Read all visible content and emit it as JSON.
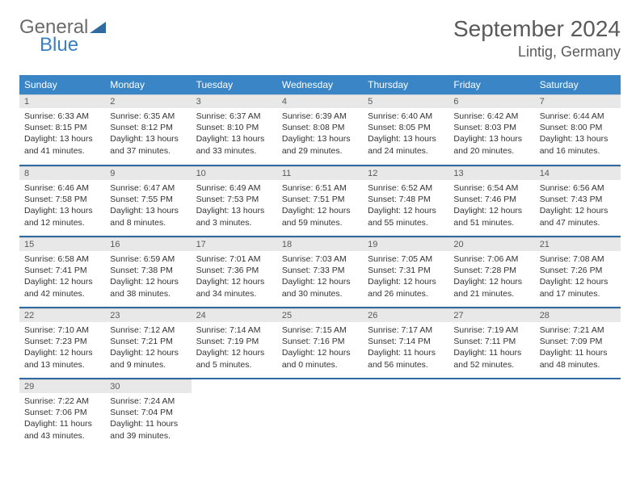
{
  "brand": {
    "part1": "General",
    "part2": "Blue"
  },
  "header": {
    "month": "September 2024",
    "location": "Lintig, Germany"
  },
  "colors": {
    "header_bg": "#3a85c6",
    "header_text": "#ffffff",
    "daynum_bg": "#e8e8e8",
    "text": "#333333",
    "row_sep": "#2f6aa0",
    "brand_gray": "#6b6b6b",
    "brand_blue": "#3a7fbf"
  },
  "weekdays": [
    "Sunday",
    "Monday",
    "Tuesday",
    "Wednesday",
    "Thursday",
    "Friday",
    "Saturday"
  ],
  "weeks": [
    [
      {
        "n": "1",
        "sr": "Sunrise: 6:33 AM",
        "ss": "Sunset: 8:15 PM",
        "dl": "Daylight: 13 hours and 41 minutes."
      },
      {
        "n": "2",
        "sr": "Sunrise: 6:35 AM",
        "ss": "Sunset: 8:12 PM",
        "dl": "Daylight: 13 hours and 37 minutes."
      },
      {
        "n": "3",
        "sr": "Sunrise: 6:37 AM",
        "ss": "Sunset: 8:10 PM",
        "dl": "Daylight: 13 hours and 33 minutes."
      },
      {
        "n": "4",
        "sr": "Sunrise: 6:39 AM",
        "ss": "Sunset: 8:08 PM",
        "dl": "Daylight: 13 hours and 29 minutes."
      },
      {
        "n": "5",
        "sr": "Sunrise: 6:40 AM",
        "ss": "Sunset: 8:05 PM",
        "dl": "Daylight: 13 hours and 24 minutes."
      },
      {
        "n": "6",
        "sr": "Sunrise: 6:42 AM",
        "ss": "Sunset: 8:03 PM",
        "dl": "Daylight: 13 hours and 20 minutes."
      },
      {
        "n": "7",
        "sr": "Sunrise: 6:44 AM",
        "ss": "Sunset: 8:00 PM",
        "dl": "Daylight: 13 hours and 16 minutes."
      }
    ],
    [
      {
        "n": "8",
        "sr": "Sunrise: 6:46 AM",
        "ss": "Sunset: 7:58 PM",
        "dl": "Daylight: 13 hours and 12 minutes."
      },
      {
        "n": "9",
        "sr": "Sunrise: 6:47 AM",
        "ss": "Sunset: 7:55 PM",
        "dl": "Daylight: 13 hours and 8 minutes."
      },
      {
        "n": "10",
        "sr": "Sunrise: 6:49 AM",
        "ss": "Sunset: 7:53 PM",
        "dl": "Daylight: 13 hours and 3 minutes."
      },
      {
        "n": "11",
        "sr": "Sunrise: 6:51 AM",
        "ss": "Sunset: 7:51 PM",
        "dl": "Daylight: 12 hours and 59 minutes."
      },
      {
        "n": "12",
        "sr": "Sunrise: 6:52 AM",
        "ss": "Sunset: 7:48 PM",
        "dl": "Daylight: 12 hours and 55 minutes."
      },
      {
        "n": "13",
        "sr": "Sunrise: 6:54 AM",
        "ss": "Sunset: 7:46 PM",
        "dl": "Daylight: 12 hours and 51 minutes."
      },
      {
        "n": "14",
        "sr": "Sunrise: 6:56 AM",
        "ss": "Sunset: 7:43 PM",
        "dl": "Daylight: 12 hours and 47 minutes."
      }
    ],
    [
      {
        "n": "15",
        "sr": "Sunrise: 6:58 AM",
        "ss": "Sunset: 7:41 PM",
        "dl": "Daylight: 12 hours and 42 minutes."
      },
      {
        "n": "16",
        "sr": "Sunrise: 6:59 AM",
        "ss": "Sunset: 7:38 PM",
        "dl": "Daylight: 12 hours and 38 minutes."
      },
      {
        "n": "17",
        "sr": "Sunrise: 7:01 AM",
        "ss": "Sunset: 7:36 PM",
        "dl": "Daylight: 12 hours and 34 minutes."
      },
      {
        "n": "18",
        "sr": "Sunrise: 7:03 AM",
        "ss": "Sunset: 7:33 PM",
        "dl": "Daylight: 12 hours and 30 minutes."
      },
      {
        "n": "19",
        "sr": "Sunrise: 7:05 AM",
        "ss": "Sunset: 7:31 PM",
        "dl": "Daylight: 12 hours and 26 minutes."
      },
      {
        "n": "20",
        "sr": "Sunrise: 7:06 AM",
        "ss": "Sunset: 7:28 PM",
        "dl": "Daylight: 12 hours and 21 minutes."
      },
      {
        "n": "21",
        "sr": "Sunrise: 7:08 AM",
        "ss": "Sunset: 7:26 PM",
        "dl": "Daylight: 12 hours and 17 minutes."
      }
    ],
    [
      {
        "n": "22",
        "sr": "Sunrise: 7:10 AM",
        "ss": "Sunset: 7:23 PM",
        "dl": "Daylight: 12 hours and 13 minutes."
      },
      {
        "n": "23",
        "sr": "Sunrise: 7:12 AM",
        "ss": "Sunset: 7:21 PM",
        "dl": "Daylight: 12 hours and 9 minutes."
      },
      {
        "n": "24",
        "sr": "Sunrise: 7:14 AM",
        "ss": "Sunset: 7:19 PM",
        "dl": "Daylight: 12 hours and 5 minutes."
      },
      {
        "n": "25",
        "sr": "Sunrise: 7:15 AM",
        "ss": "Sunset: 7:16 PM",
        "dl": "Daylight: 12 hours and 0 minutes."
      },
      {
        "n": "26",
        "sr": "Sunrise: 7:17 AM",
        "ss": "Sunset: 7:14 PM",
        "dl": "Daylight: 11 hours and 56 minutes."
      },
      {
        "n": "27",
        "sr": "Sunrise: 7:19 AM",
        "ss": "Sunset: 7:11 PM",
        "dl": "Daylight: 11 hours and 52 minutes."
      },
      {
        "n": "28",
        "sr": "Sunrise: 7:21 AM",
        "ss": "Sunset: 7:09 PM",
        "dl": "Daylight: 11 hours and 48 minutes."
      }
    ],
    [
      {
        "n": "29",
        "sr": "Sunrise: 7:22 AM",
        "ss": "Sunset: 7:06 PM",
        "dl": "Daylight: 11 hours and 43 minutes."
      },
      {
        "n": "30",
        "sr": "Sunrise: 7:24 AM",
        "ss": "Sunset: 7:04 PM",
        "dl": "Daylight: 11 hours and 39 minutes."
      },
      null,
      null,
      null,
      null,
      null
    ]
  ]
}
